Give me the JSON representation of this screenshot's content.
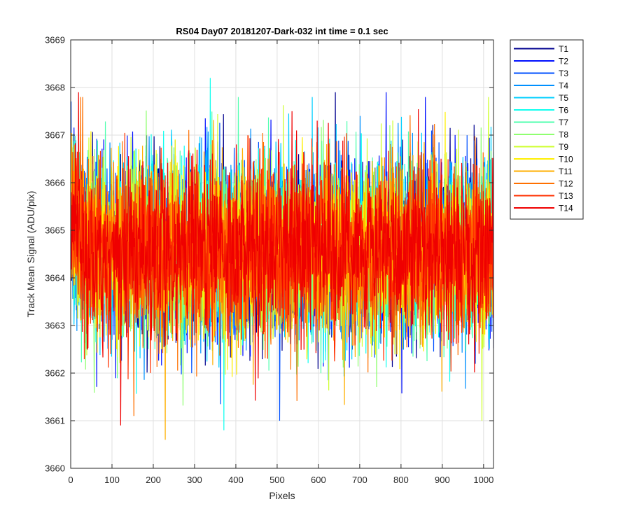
{
  "chart_data": {
    "type": "line",
    "title": "RS04 Day07 20181207-Dark-032 int time = 0.1 sec",
    "xlabel": "Pixels",
    "ylabel": "Track Mean Signal (ADU/pix)",
    "xlim": [
      0,
      1024
    ],
    "ylim": [
      3660,
      3669
    ],
    "xticks": [
      0,
      100,
      200,
      300,
      400,
      500,
      600,
      700,
      800,
      900,
      1000
    ],
    "xtick_labels": [
      "0",
      "100",
      "200",
      "300",
      "400",
      "500",
      "600",
      "700",
      "800",
      "900",
      "1000"
    ],
    "yticks": [
      3660,
      3661,
      3662,
      3663,
      3664,
      3665,
      3666,
      3667,
      3668,
      3669
    ],
    "ytick_labels": [
      "3660",
      "3661",
      "3662",
      "3663",
      "3664",
      "3665",
      "3666",
      "3667",
      "3668",
      "3669"
    ],
    "grid": true,
    "legend_position": "outside-top-right",
    "noise": {
      "mean": 3664.6,
      "std": 0.9,
      "min": 3660.6,
      "max": 3668.2,
      "points_per_series": 1024,
      "early_pixel_rise": 1.0
    },
    "series": [
      {
        "name": "T1",
        "color": "#00008f"
      },
      {
        "name": "T2",
        "color": "#0010ff"
      },
      {
        "name": "T3",
        "color": "#0050ff"
      },
      {
        "name": "T4",
        "color": "#0090ff"
      },
      {
        "name": "T5",
        "color": "#00cfff"
      },
      {
        "name": "T6",
        "color": "#10ffef"
      },
      {
        "name": "T7",
        "color": "#50ffaf"
      },
      {
        "name": "T8",
        "color": "#8fff70"
      },
      {
        "name": "T9",
        "color": "#cfff30"
      },
      {
        "name": "T10",
        "color": "#ffef00"
      },
      {
        "name": "T11",
        "color": "#ffaf00"
      },
      {
        "name": "T12",
        "color": "#ff7000"
      },
      {
        "name": "T13",
        "color": "#ff3000"
      },
      {
        "name": "T14",
        "color": "#ef0000"
      }
    ],
    "extremes": [
      {
        "series": "T6",
        "x": 337,
        "y": 3668.2
      },
      {
        "series": "T2",
        "x": 763,
        "y": 3667.9
      },
      {
        "series": "T1",
        "x": 640,
        "y": 3667.9
      },
      {
        "series": "T14",
        "x": 18,
        "y": 3667.9
      },
      {
        "series": "T12",
        "x": 28,
        "y": 3667.8
      },
      {
        "series": "T6",
        "x": 370,
        "y": 3660.8
      },
      {
        "series": "T11",
        "x": 228,
        "y": 3660.6
      },
      {
        "series": "T14",
        "x": 120,
        "y": 3660.9
      },
      {
        "series": "T12",
        "x": 152,
        "y": 3661.1
      },
      {
        "series": "T9",
        "x": 995,
        "y": 3661.0
      }
    ]
  }
}
